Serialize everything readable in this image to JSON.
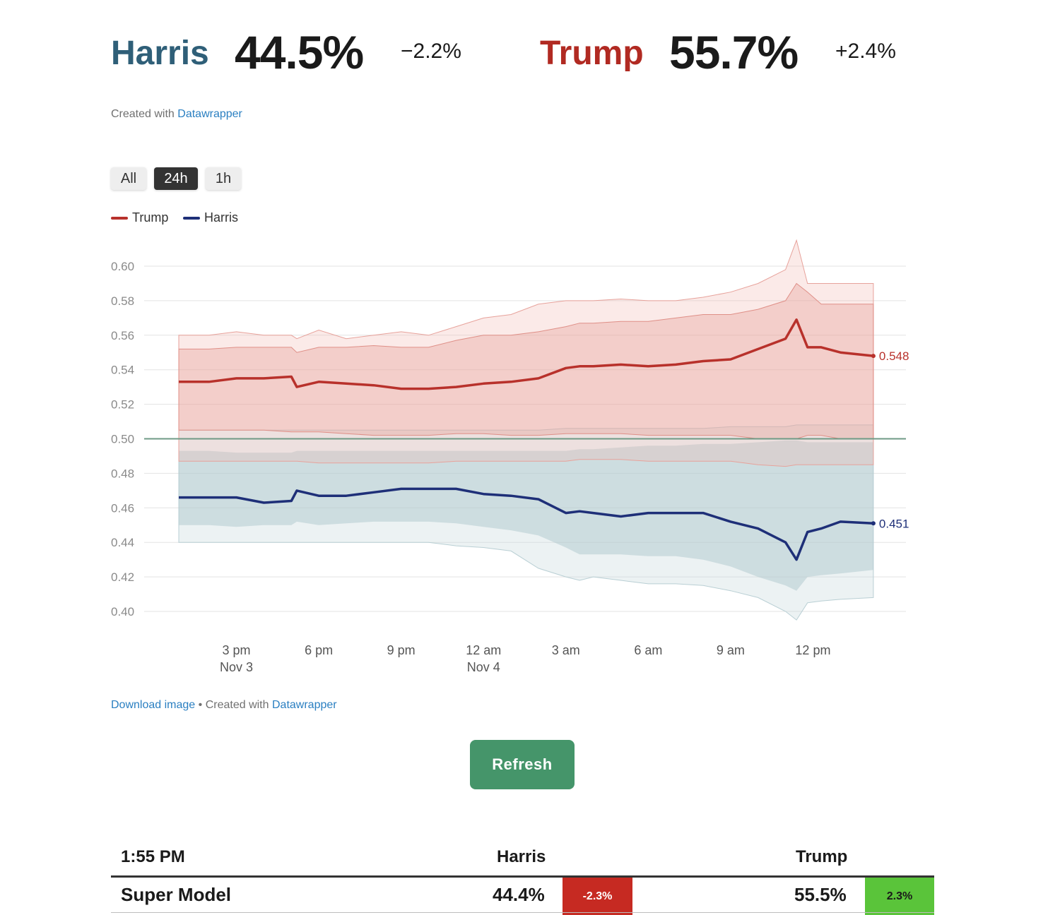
{
  "headline": {
    "harris": {
      "name": "Harris",
      "pct": "44.5%",
      "change": "−2.2%",
      "color": "#2f5f78"
    },
    "trump": {
      "name": "Trump",
      "pct": "55.7%",
      "change": "+2.4%",
      "color": "#b12a22"
    }
  },
  "credit_top": {
    "prefix": "Created with",
    "link": "Datawrapper"
  },
  "range_buttons": [
    "All",
    "24h",
    "1h"
  ],
  "active_range": "24h",
  "legend": [
    {
      "name": "Trump",
      "color": "#b8312b"
    },
    {
      "name": "Harris",
      "color": "#1e2f78"
    }
  ],
  "chart_data": {
    "type": "line",
    "title": "",
    "xlabel": "",
    "ylabel": "",
    "ylim": [
      0.4,
      0.6
    ],
    "yticks": [
      "0.60",
      "0.58",
      "0.56",
      "0.54",
      "0.52",
      "0.50",
      "0.48",
      "0.46",
      "0.44",
      "0.42",
      "0.40"
    ],
    "x_tick_labels": [
      {
        "line1": "3 pm",
        "line2": "Nov 3",
        "hour": 3
      },
      {
        "line1": "6 pm",
        "line2": "",
        "hour": 6
      },
      {
        "line1": "9 pm",
        "line2": "",
        "hour": 9
      },
      {
        "line1": "12 am",
        "line2": "Nov 4",
        "hour": 12
      },
      {
        "line1": "3 am",
        "line2": "",
        "hour": 15
      },
      {
        "line1": "6 am",
        "line2": "",
        "hour": 18
      },
      {
        "line1": "9 am",
        "line2": "",
        "hour": 21
      },
      {
        "line1": "12 pm",
        "line2": "",
        "hour": 24
      }
    ],
    "x_hours_since_12pm_nov3": [
      0.9,
      2.0,
      3.0,
      4.0,
      5.0,
      5.2,
      6.0,
      7.0,
      8.0,
      9.0,
      10.0,
      11.0,
      12.0,
      13.0,
      14.0,
      15.0,
      15.5,
      16.0,
      17.0,
      18.0,
      19.0,
      20.0,
      21.0,
      22.0,
      23.0,
      23.4,
      23.8,
      24.3,
      25.0,
      26.2
    ],
    "series": [
      {
        "name": "Trump",
        "color": "#b8312b",
        "values": [
          0.533,
          0.533,
          0.535,
          0.535,
          0.536,
          0.53,
          0.533,
          0.532,
          0.531,
          0.529,
          0.529,
          0.53,
          0.532,
          0.533,
          0.535,
          0.541,
          0.542,
          0.542,
          0.543,
          0.542,
          0.543,
          0.545,
          0.546,
          0.552,
          0.558,
          0.569,
          0.553,
          0.553,
          0.55,
          0.548
        ],
        "band_inner": {
          "low": [
            0.505,
            0.505,
            0.505,
            0.505,
            0.504,
            0.504,
            0.504,
            0.503,
            0.502,
            0.502,
            0.502,
            0.503,
            0.503,
            0.502,
            0.502,
            0.503,
            0.503,
            0.503,
            0.503,
            0.502,
            0.502,
            0.502,
            0.502,
            0.5,
            0.5,
            0.5,
            0.502,
            0.502,
            0.5,
            0.5
          ],
          "high": [
            0.552,
            0.552,
            0.553,
            0.553,
            0.553,
            0.55,
            0.553,
            0.553,
            0.554,
            0.553,
            0.553,
            0.557,
            0.56,
            0.56,
            0.562,
            0.565,
            0.567,
            0.567,
            0.568,
            0.568,
            0.57,
            0.572,
            0.572,
            0.575,
            0.58,
            0.59,
            0.585,
            0.578,
            0.578,
            0.578
          ]
        },
        "band_outer": {
          "low": [
            0.487,
            0.487,
            0.487,
            0.487,
            0.487,
            0.487,
            0.486,
            0.486,
            0.486,
            0.486,
            0.486,
            0.487,
            0.487,
            0.487,
            0.487,
            0.487,
            0.488,
            0.488,
            0.488,
            0.487,
            0.487,
            0.487,
            0.487,
            0.485,
            0.484,
            0.485,
            0.485,
            0.485,
            0.485,
            0.485
          ],
          "high": [
            0.56,
            0.56,
            0.562,
            0.56,
            0.56,
            0.558,
            0.563,
            0.558,
            0.56,
            0.562,
            0.56,
            0.565,
            0.57,
            0.572,
            0.578,
            0.58,
            0.58,
            0.58,
            0.581,
            0.58,
            0.58,
            0.582,
            0.585,
            0.59,
            0.598,
            0.615,
            0.59,
            0.59,
            0.59,
            0.59
          ]
        }
      },
      {
        "name": "Harris",
        "color": "#1e2f78",
        "values": [
          0.466,
          0.466,
          0.466,
          0.463,
          0.464,
          0.47,
          0.467,
          0.467,
          0.469,
          0.471,
          0.471,
          0.471,
          0.468,
          0.467,
          0.465,
          0.457,
          0.458,
          0.457,
          0.455,
          0.457,
          0.457,
          0.457,
          0.452,
          0.448,
          0.44,
          0.43,
          0.446,
          0.448,
          0.452,
          0.451
        ],
        "band_inner": {
          "low": [
            0.45,
            0.45,
            0.449,
            0.45,
            0.45,
            0.452,
            0.45,
            0.451,
            0.452,
            0.452,
            0.452,
            0.451,
            0.449,
            0.447,
            0.444,
            0.437,
            0.433,
            0.433,
            0.433,
            0.432,
            0.432,
            0.43,
            0.426,
            0.42,
            0.415,
            0.412,
            0.42,
            0.421,
            0.422,
            0.424
          ],
          "high": [
            0.493,
            0.493,
            0.492,
            0.492,
            0.492,
            0.493,
            0.493,
            0.493,
            0.493,
            0.493,
            0.493,
            0.493,
            0.493,
            0.493,
            0.493,
            0.493,
            0.494,
            0.494,
            0.495,
            0.496,
            0.496,
            0.497,
            0.497,
            0.498,
            0.499,
            0.499,
            0.498,
            0.498,
            0.498,
            0.498
          ]
        },
        "band_outer": {
          "low": [
            0.44,
            0.44,
            0.44,
            0.44,
            0.44,
            0.44,
            0.44,
            0.44,
            0.44,
            0.44,
            0.44,
            0.438,
            0.437,
            0.435,
            0.425,
            0.42,
            0.418,
            0.42,
            0.418,
            0.416,
            0.416,
            0.415,
            0.412,
            0.408,
            0.4,
            0.395,
            0.405,
            0.406,
            0.407,
            0.408
          ],
          "high": [
            0.505,
            0.505,
            0.505,
            0.505,
            0.505,
            0.505,
            0.505,
            0.505,
            0.505,
            0.505,
            0.505,
            0.505,
            0.505,
            0.505,
            0.505,
            0.506,
            0.506,
            0.506,
            0.506,
            0.506,
            0.506,
            0.506,
            0.507,
            0.507,
            0.507,
            0.508,
            0.508,
            0.508,
            0.508,
            0.508
          ]
        }
      }
    ],
    "end_labels": {
      "trump": "0.548",
      "harris": "0.451"
    },
    "reference_line": 0.5,
    "reference_line_color": "#6f9a86",
    "grid": true,
    "legend_position": "top-left"
  },
  "credit_bottom": {
    "download": "Download image",
    "sep": "•",
    "prefix": "Created with",
    "link": "Datawrapper"
  },
  "refresh_label": "Refresh",
  "table": {
    "time": "1:55 PM",
    "col_harris": "Harris",
    "col_trump": "Trump",
    "rows": [
      {
        "model": "Super Model",
        "harris_pct": "44.4%",
        "harris_delta": "-2.3%",
        "harris_delta_color": "#c62a22",
        "trump_pct": "55.5%",
        "trump_delta": "2.3%",
        "trump_delta_color": "#5ac43a"
      }
    ]
  }
}
